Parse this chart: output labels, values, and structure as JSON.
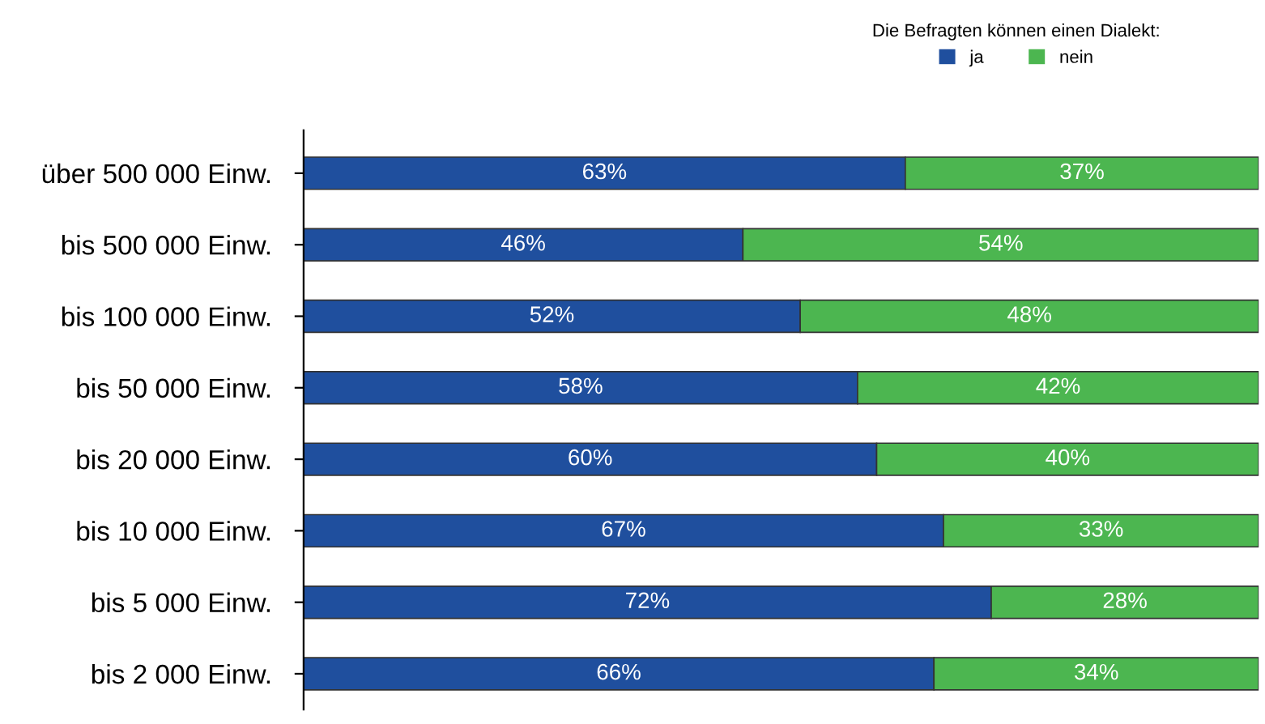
{
  "chart_data": {
    "type": "bar",
    "orientation": "horizontal",
    "stacked": true,
    "legend": "top right",
    "legend_title": "Die Befragten können einen Dialekt:",
    "categories": [
      "über 500 000 Einw.",
      "bis 500 000 Einw.",
      "bis 100 000 Einw.",
      "bis 50 000 Einw.",
      "bis 20 000 Einw.",
      "bis 10 000 Einw.",
      "bis 5 000 Einw.",
      "bis 2 000 Einw."
    ],
    "series": [
      {
        "name": "ja",
        "color": "#1f4f9e",
        "values": [
          63,
          46,
          52,
          58,
          60,
          67,
          72,
          66
        ],
        "value_labels": [
          "63%",
          "46%",
          "52%",
          "58%",
          "60%",
          "67%",
          "72%",
          "66%"
        ]
      },
      {
        "name": "nein",
        "color": "#4cb650",
        "values": [
          37,
          54,
          48,
          42,
          40,
          33,
          28,
          34
        ],
        "value_labels": [
          "37%",
          "54%",
          "48%",
          "42%",
          "40%",
          "33%",
          "28%",
          "34%"
        ]
      }
    ]
  }
}
